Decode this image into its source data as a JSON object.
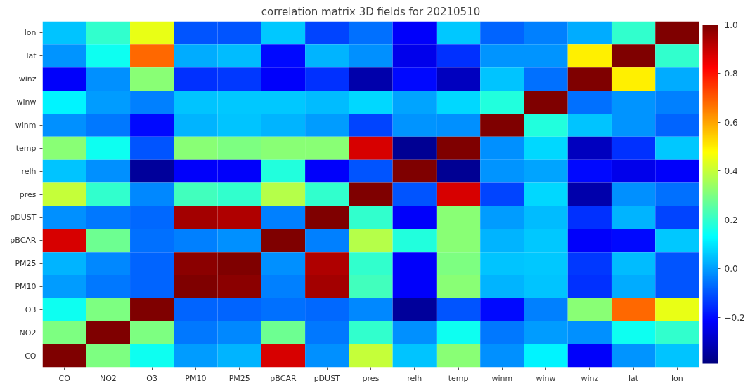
{
  "chart_data": {
    "type": "heatmap",
    "title": "correlation matrix 3D fields for 20210510",
    "categories": [
      "CO",
      "NO2",
      "O3",
      "PM10",
      "PM25",
      "pBCAR",
      "pDUST",
      "pres",
      "relh",
      "temp",
      "winm",
      "winw",
      "winz",
      "lat",
      "lon"
    ],
    "y_categories": [
      "lon",
      "lat",
      "winz",
      "winw",
      "winm",
      "temp",
      "relh",
      "pres",
      "pDUST",
      "pBCAR",
      "PM25",
      "PM10",
      "O3",
      "NO2",
      "CO"
    ],
    "cells": [
      [
        0.05,
        0.2,
        0.45,
        -0.1,
        -0.1,
        0.06,
        -0.12,
        -0.06,
        -0.22,
        0.06,
        -0.08,
        -0.04,
        0.02,
        0.2,
        1
      ],
      [
        -0.01,
        0.15,
        0.68,
        0.02,
        0.04,
        -0.2,
        0.03,
        -0.02,
        -0.24,
        -0.15,
        -0.01,
        -0.01,
        0.5,
        1,
        0.2
      ],
      [
        -0.22,
        -0.02,
        0.32,
        -0.15,
        -0.14,
        -0.22,
        -0.15,
        -0.33,
        -0.2,
        -0.3,
        0.05,
        -0.06,
        1,
        0.5,
        0.02
      ],
      [
        0.12,
        0.0,
        -0.04,
        0.05,
        0.06,
        0.06,
        0.04,
        0.08,
        0.01,
        0.08,
        0.18,
        1,
        -0.06,
        -0.01,
        -0.04
      ],
      [
        -0.02,
        -0.05,
        -0.2,
        0.03,
        0.05,
        0.03,
        0.0,
        -0.12,
        -0.01,
        -0.02,
        1,
        0.18,
        0.05,
        -0.01,
        -0.08
      ],
      [
        0.32,
        0.15,
        -0.1,
        0.32,
        0.3,
        0.32,
        0.32,
        0.88,
        -0.36,
        1,
        -0.02,
        0.08,
        -0.3,
        -0.15,
        0.06
      ],
      [
        0.05,
        -0.02,
        -0.35,
        -0.22,
        -0.22,
        0.18,
        -0.22,
        -0.1,
        1,
        -0.36,
        -0.01,
        0.01,
        -0.2,
        -0.24,
        -0.22
      ],
      [
        0.4,
        0.2,
        -0.03,
        0.22,
        0.2,
        0.38,
        0.2,
        1,
        -0.1,
        0.88,
        -0.12,
        0.08,
        -0.33,
        -0.02,
        -0.06
      ],
      [
        -0.02,
        -0.05,
        -0.07,
        0.95,
        0.93,
        -0.04,
        1,
        0.2,
        -0.22,
        0.32,
        0.0,
        0.04,
        -0.15,
        0.03,
        -0.12
      ],
      [
        0.88,
        0.28,
        -0.06,
        -0.04,
        -0.02,
        1,
        -0.04,
        0.38,
        0.18,
        0.32,
        0.03,
        0.06,
        -0.22,
        -0.2,
        0.06
      ],
      [
        0.03,
        -0.03,
        -0.08,
        0.98,
        1,
        -0.02,
        0.93,
        0.2,
        -0.22,
        0.3,
        0.05,
        0.06,
        -0.14,
        0.04,
        -0.1
      ],
      [
        0.0,
        -0.05,
        -0.08,
        1,
        0.98,
        -0.04,
        0.95,
        0.22,
        -0.22,
        0.32,
        0.03,
        0.05,
        -0.15,
        0.02,
        -0.1
      ],
      [
        0.15,
        0.3,
        1,
        -0.08,
        -0.08,
        -0.06,
        -0.07,
        -0.03,
        -0.35,
        -0.1,
        -0.2,
        -0.04,
        0.32,
        0.68,
        0.45
      ],
      [
        0.3,
        1,
        0.3,
        -0.05,
        -0.03,
        0.28,
        -0.05,
        0.2,
        -0.02,
        0.15,
        -0.05,
        0.0,
        -0.02,
        0.15,
        0.2
      ],
      [
        1,
        0.3,
        0.15,
        0.0,
        0.03,
        0.88,
        -0.02,
        0.4,
        0.05,
        0.32,
        -0.02,
        0.12,
        -0.22,
        -0.01,
        0.05
      ]
    ],
    "clim": [
      -0.39,
      1.0
    ],
    "cticks": [
      {
        "value": -0.2,
        "label": "−0.2"
      },
      {
        "value": 0.0,
        "label": "0.0"
      },
      {
        "value": 0.2,
        "label": "0.2"
      },
      {
        "value": 0.4,
        "label": "0.4"
      },
      {
        "value": 0.6,
        "label": "0.6"
      },
      {
        "value": 0.8,
        "label": "0.8"
      },
      {
        "value": 1.0,
        "label": "1.0"
      }
    ]
  }
}
